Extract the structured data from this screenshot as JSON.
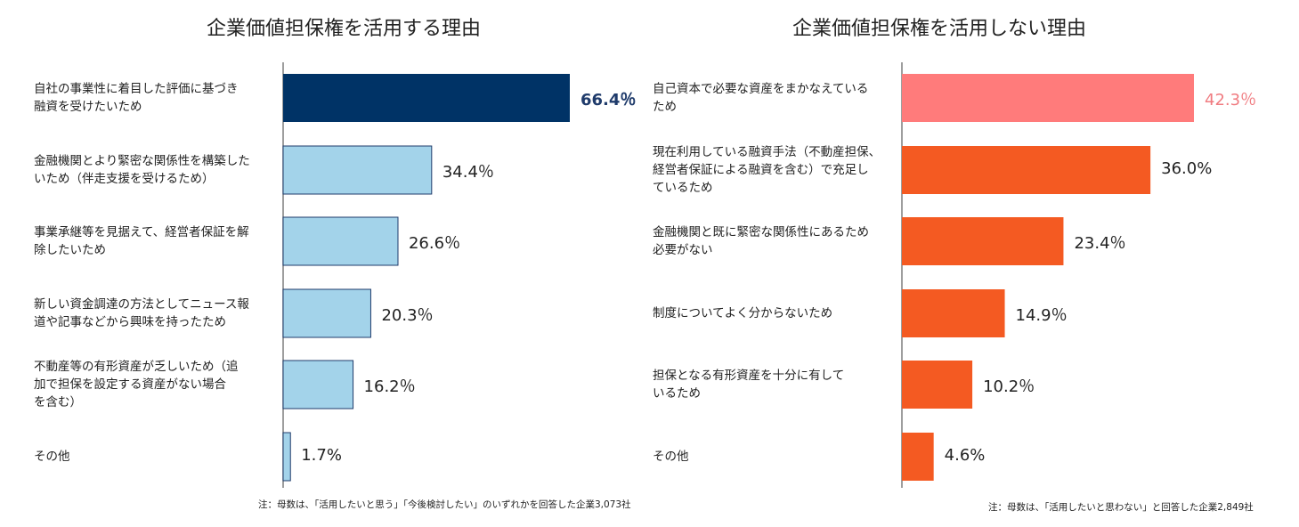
{
  "chart_data": [
    {
      "type": "bar",
      "orientation": "horizontal",
      "title": "企業価値担保権を活用する理由",
      "categories": [
        "自社の事業性に着目した評価に基づき融資を受けたいため",
        "金融機関とより緊密な関係性を構築したいため（伴走支援を受けるため）",
        "事業承継等を見据えて、経営者保証を解除したいため",
        "新しい資金調達の方法としてニュース報道や記事などから興味を持ったため",
        "不動産等の有形資産が乏しいため（追加で担保を設定する資産がない場合を含む）",
        "その他"
      ],
      "values": [
        66.4,
        34.4,
        26.6,
        20.3,
        16.2,
        1.7
      ],
      "value_labels": [
        "66.4％",
        "34.4％",
        "26.6％",
        "20.3％",
        "16.2％",
        "1.7%"
      ],
      "colors": [
        "#003366",
        "#a3d3ea",
        "#a3d3ea",
        "#a3d3ea",
        "#a3d3ea",
        "#a3d3ea"
      ],
      "label_colors": [
        "#1f3b6b",
        "#222222",
        "#222222",
        "#222222",
        "#222222",
        "#222222"
      ],
      "note": "注：母数は、「活用したいと思う」「今後検討したい」のいずれかを回答した企業3,073社",
      "xlim": [
        0,
        100
      ],
      "grid": false
    },
    {
      "type": "bar",
      "orientation": "horizontal",
      "title": "企業価値担保権を活用しない理由",
      "categories": [
        "自己資本で必要な資産をまかなえているため",
        "現在利用している融資手法（不動産担保、経営者保証による融資を含む）で充足しているため",
        "金融機関と既に緊密な関係性にあるため必要がない",
        "制度についてよく分からないため",
        "担保となる有形資産を十分に有しているため",
        "その他"
      ],
      "values": [
        42.3,
        36.0,
        23.4,
        14.9,
        10.2,
        4.6
      ],
      "value_labels": [
        "42.3％",
        "36.0%",
        "23.4％",
        "14.9％",
        "10.2％",
        "4.6%"
      ],
      "colors": [
        "#ff7b7b",
        "#f45a22",
        "#f45a22",
        "#f45a22",
        "#f45a22",
        "#f45a22"
      ],
      "label_colors": [
        "#f07b80",
        "#222222",
        "#222222",
        "#222222",
        "#222222",
        "#222222"
      ],
      "note": "注：母数は、「活用したいと思わない」と回答した企業2,849社",
      "xlim": [
        0,
        100
      ],
      "grid": false
    }
  ],
  "left_labels": [
    [
      "自社の事業性に着目した評価に基づき",
      "融資を受けたいため"
    ],
    [
      "金融機関とより緊密な関係性を構築した",
      "いため（伴走支援を受けるため）"
    ],
    [
      "事業承継等を見据えて、経営者保証を解",
      "除したいため"
    ],
    [
      "新しい資金調達の方法としてニュース報",
      "道や記事などから興味を持ったため"
    ],
    [
      "不動産等の有形資産が乏しいため（追",
      "加で担保を設定する資産がない場合",
      "を含む）"
    ],
    [
      "その他"
    ]
  ],
  "right_labels": [
    [
      "自己資本で必要な資産をまかなえている",
      "ため"
    ],
    [
      "現在利用している融資手法（不動産担保、",
      "経営者保証による融資を含む）で充足し",
      "ているため"
    ],
    [
      "金融機関と既に緊密な関係性にあるため",
      "必要がない"
    ],
    [
      "制度についてよく分からないため"
    ],
    [
      "担保となる有形資産を十分に有して",
      "いるため"
    ],
    [
      "その他"
    ]
  ]
}
